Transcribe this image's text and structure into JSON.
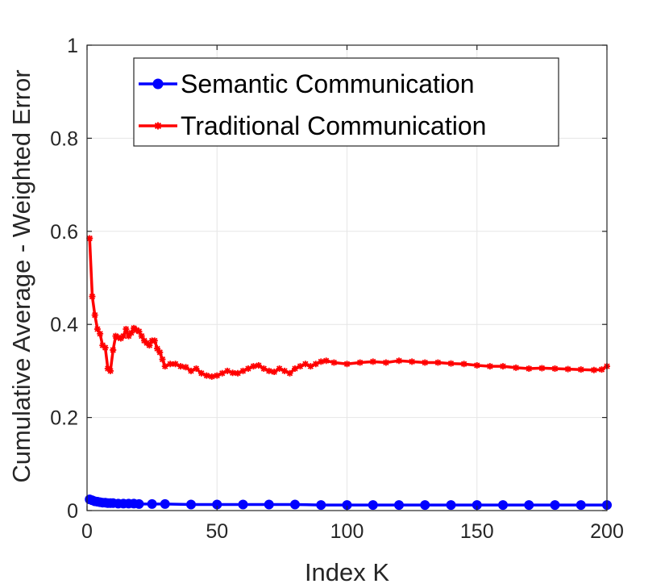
{
  "chart_data": {
    "type": "line",
    "title": "",
    "xlabel": "Index K",
    "ylabel": "Cumulative Average - Weighted Error",
    "xlim": [
      0,
      200
    ],
    "ylim": [
      0,
      1
    ],
    "xticks": [
      0,
      50,
      100,
      150,
      200
    ],
    "yticks": [
      0,
      0.2,
      0.4,
      0.6,
      0.8,
      1
    ],
    "ytick_labels": [
      "0",
      "0.2",
      "0.4",
      "0.6",
      "0.8",
      "1"
    ],
    "grid": true,
    "legend_position": "top-right",
    "series": [
      {
        "name": "Semantic Communication",
        "color": "#0000ff",
        "marker": "circle",
        "x": [
          1,
          2,
          3,
          4,
          5,
          6,
          7,
          8,
          9,
          10,
          12,
          14,
          16,
          18,
          20,
          25,
          30,
          40,
          50,
          60,
          70,
          80,
          90,
          100,
          110,
          120,
          130,
          140,
          150,
          160,
          170,
          180,
          190,
          200
        ],
        "y": [
          0.024,
          0.022,
          0.02,
          0.019,
          0.018,
          0.017,
          0.017,
          0.016,
          0.016,
          0.016,
          0.015,
          0.015,
          0.015,
          0.015,
          0.014,
          0.014,
          0.014,
          0.013,
          0.013,
          0.013,
          0.013,
          0.013,
          0.012,
          0.012,
          0.012,
          0.012,
          0.012,
          0.012,
          0.012,
          0.012,
          0.012,
          0.012,
          0.012,
          0.012
        ]
      },
      {
        "name": "Traditional Communication",
        "color": "#ff0000",
        "marker": "star",
        "x": [
          1,
          2,
          3,
          4,
          5,
          6,
          7,
          8,
          9,
          10,
          11,
          12,
          13,
          14,
          15,
          16,
          17,
          18,
          19,
          20,
          21,
          22,
          23,
          24,
          25,
          26,
          27,
          28,
          29,
          30,
          32,
          34,
          36,
          38,
          40,
          42,
          44,
          46,
          48,
          50,
          52,
          54,
          56,
          58,
          60,
          62,
          64,
          66,
          68,
          70,
          72,
          74,
          76,
          78,
          80,
          82,
          84,
          86,
          88,
          90,
          92,
          95,
          100,
          105,
          110,
          115,
          120,
          125,
          130,
          135,
          140,
          145,
          150,
          155,
          160,
          165,
          170,
          175,
          180,
          185,
          190,
          195,
          198,
          200
        ],
        "y": [
          0.585,
          0.46,
          0.42,
          0.39,
          0.38,
          0.355,
          0.35,
          0.305,
          0.3,
          0.345,
          0.375,
          0.372,
          0.37,
          0.375,
          0.39,
          0.375,
          0.382,
          0.392,
          0.388,
          0.385,
          0.375,
          0.365,
          0.36,
          0.355,
          0.365,
          0.365,
          0.348,
          0.34,
          0.325,
          0.31,
          0.315,
          0.315,
          0.31,
          0.308,
          0.3,
          0.305,
          0.295,
          0.29,
          0.288,
          0.29,
          0.295,
          0.3,
          0.296,
          0.295,
          0.3,
          0.305,
          0.31,
          0.312,
          0.305,
          0.3,
          0.298,
          0.305,
          0.3,
          0.295,
          0.305,
          0.31,
          0.315,
          0.31,
          0.315,
          0.32,
          0.322,
          0.318,
          0.315,
          0.318,
          0.32,
          0.318,
          0.322,
          0.32,
          0.318,
          0.318,
          0.316,
          0.315,
          0.312,
          0.31,
          0.31,
          0.307,
          0.305,
          0.306,
          0.305,
          0.304,
          0.303,
          0.302,
          0.303,
          0.31
        ]
      }
    ]
  }
}
